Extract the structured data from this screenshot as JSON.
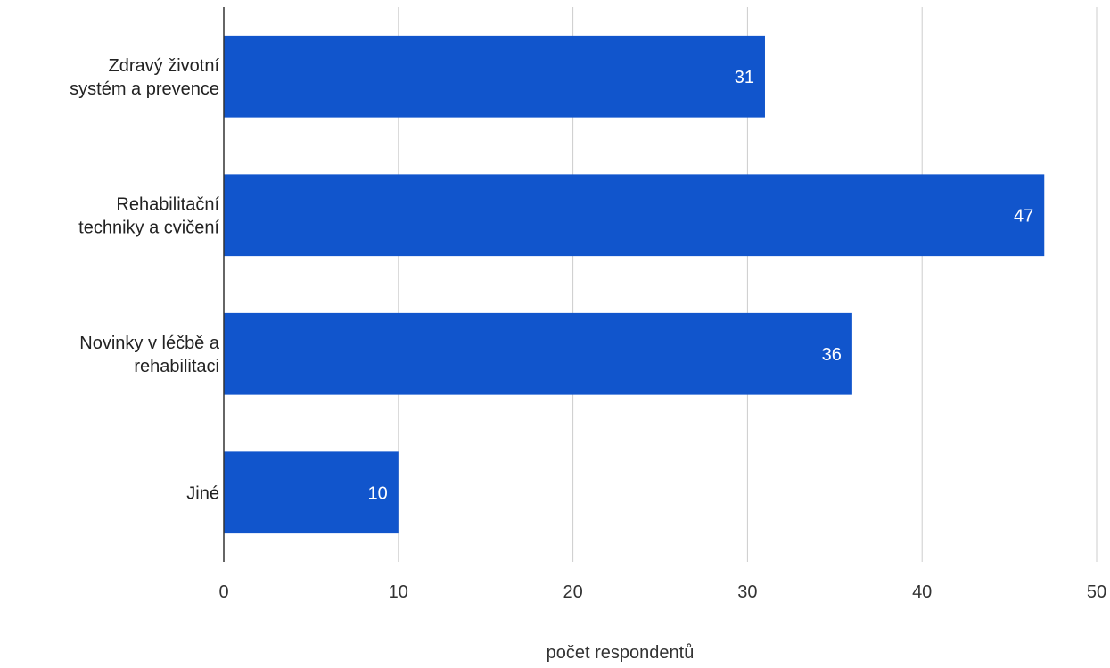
{
  "chart_data": {
    "type": "bar",
    "orientation": "horizontal",
    "title": "",
    "xlabel": "počet respondentů",
    "ylabel": "",
    "xlim": [
      0,
      50
    ],
    "xticks": [
      0,
      10,
      20,
      30,
      40,
      50
    ],
    "grid": true,
    "legend": "none",
    "bar_color": "#1155cc",
    "categories": [
      [
        "Zdravý životní",
        "systém a prevence"
      ],
      [
        "Rehabilitační",
        "techniky a cvičení"
      ],
      [
        "Novinky v léčbě a",
        "rehabilitaci"
      ],
      [
        "Jiné"
      ]
    ],
    "values": [
      31,
      47,
      36,
      10
    ]
  }
}
